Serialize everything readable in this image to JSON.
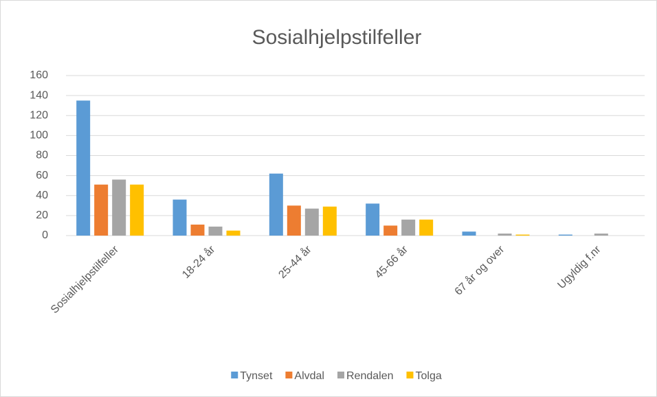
{
  "chart_data": {
    "type": "bar",
    "title": "Sosialhjelpstilfeller",
    "categories": [
      "Sosialhjelpstilfeller",
      "18-24 år",
      "25-44 år",
      "45-66 år",
      "67 år og over",
      "Ugyldig f.nr"
    ],
    "series": [
      {
        "name": "Tynset",
        "color": "#5b9bd5",
        "values": [
          135,
          36,
          62,
          32,
          4,
          1
        ]
      },
      {
        "name": "Alvdal",
        "color": "#ed7d31",
        "values": [
          51,
          11,
          30,
          10,
          0,
          0
        ]
      },
      {
        "name": "Rendalen",
        "color": "#a5a5a5",
        "values": [
          56,
          9,
          27,
          16,
          2,
          2
        ]
      },
      {
        "name": "Tolga",
        "color": "#ffc000",
        "values": [
          51,
          5,
          29,
          16,
          1,
          0
        ]
      }
    ],
    "ylim": [
      0,
      160
    ],
    "yticks": [
      0,
      20,
      40,
      60,
      80,
      100,
      120,
      140,
      160
    ],
    "grid": true,
    "legend": "bottom"
  }
}
